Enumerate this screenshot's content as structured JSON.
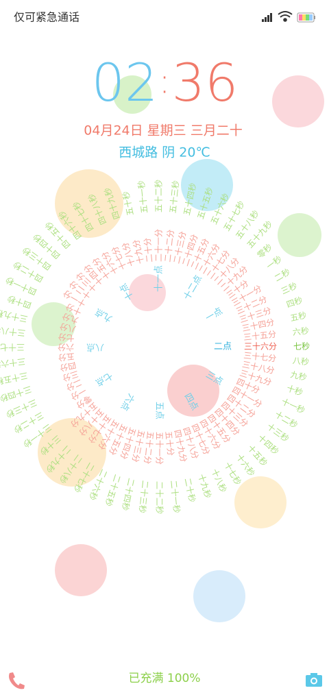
{
  "status_bar": {
    "carrier": "仅可紧急通话"
  },
  "clock": {
    "hours": "02",
    "separator": ":",
    "minutes": "36"
  },
  "date": "04月24日 星期三 三月二十",
  "weather": "西城路 阴 20℃",
  "rings": {
    "hours": [
      "二点",
      "三点",
      "四点",
      "五点",
      "六点",
      "七点",
      "八点",
      "九点",
      "十点",
      "十一点",
      "十二点",
      "一点"
    ],
    "minutes": [
      "三十六分",
      "三十七分",
      "三十八分",
      "三十九分",
      "四十分",
      "四十一分",
      "四十二分",
      "四十三分",
      "四十四分",
      "四十五分",
      "四十六分",
      "四十七分",
      "四十八分",
      "四十九分",
      "五十分",
      "五十一分",
      "五十二分",
      "五十三分",
      "五十四分",
      "五十五分",
      "五十六分",
      "五十七分",
      "五十八分",
      "五十九分",
      "零分",
      "一分",
      "二分",
      "三分",
      "四分",
      "五分",
      "六分",
      "七分",
      "八分",
      "九分",
      "十分",
      "十一分",
      "十二分",
      "十三分",
      "十四分",
      "十五分",
      "十六分",
      "十七分",
      "十八分",
      "十九分",
      "二十分",
      "二十一分",
      "二十二分",
      "二十三分",
      "二十四分",
      "二十五分",
      "二十六分",
      "二十七分",
      "二十八分",
      "二十九分",
      "三十分",
      "三十一分",
      "三十二分",
      "三十三分",
      "三十四分",
      "三十五分"
    ],
    "seconds": [
      "七秒",
      "八秒",
      "九秒",
      "十秒",
      "十一秒",
      "十二秒",
      "十三秒",
      "十四秒",
      "十五秒",
      "十六秒",
      "十七秒",
      "十八秒",
      "十九秒",
      "二十秒",
      "二十一秒",
      "二十二秒",
      "二十三秒",
      "二十四秒",
      "二十五秒",
      "二十六秒",
      "二十七秒",
      "二十八秒",
      "二十九秒",
      "三十秒",
      "三十一秒",
      "三十二秒",
      "三十三秒",
      "三十四秒",
      "三十五秒",
      "三十六秒",
      "三十七秒",
      "三十八秒",
      "三十九秒",
      "四十秒",
      "四十一秒",
      "四十二秒",
      "四十三秒",
      "四十四秒",
      "四十五秒",
      "四十六秒",
      "四十七秒",
      "四十八秒",
      "四十九秒",
      "五十秒",
      "五十一秒",
      "五十二秒",
      "五十三秒",
      "五十四秒",
      "五十五秒",
      "五十六秒",
      "五十七秒",
      "五十八秒",
      "五十九秒",
      "零秒",
      "一秒",
      "二秒",
      "三秒",
      "四秒",
      "五秒",
      "六秒"
    ]
  },
  "footer": {
    "charging": "已充满 100%"
  }
}
